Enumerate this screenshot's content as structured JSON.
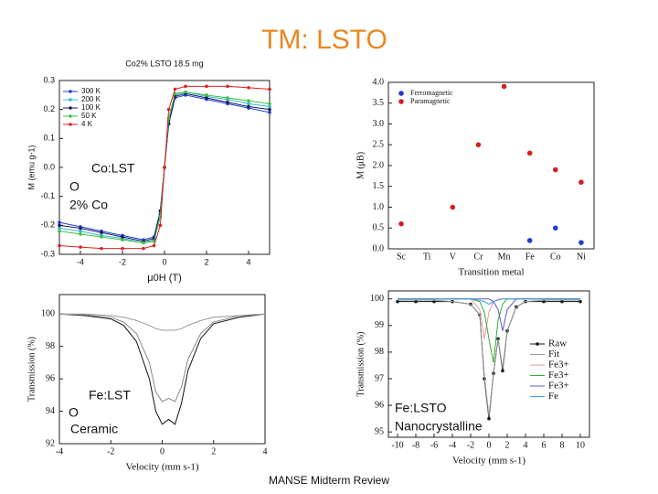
{
  "title": "TM: LSTO",
  "footer": "MANSE Midterm Review",
  "chart_data": [
    {
      "type": "line",
      "title": "Co2% LSTO 18.5 mg",
      "xlabel": "μ0H (T)",
      "ylabel": "M (emu g-1)",
      "x": [
        -5,
        -4,
        -3,
        -2,
        -1,
        -0.5,
        -0.2,
        0,
        0.2,
        0.5,
        1,
        2,
        3,
        4,
        5
      ],
      "xlim": [
        -5,
        5
      ],
      "xticks": [
        -4,
        -2,
        0,
        2,
        4
      ],
      "ylim": [
        -0.3,
        0.3
      ],
      "yticks": [
        -0.3,
        -0.2,
        -0.1,
        {
          "value": 0,
          "label": "0.0"
        },
        0.1,
        0.2,
        0.3
      ],
      "legend": "upper left",
      "series": [
        {
          "name": "300 K",
          "color": "#1f3fd0",
          "marker": true,
          "values": [
            -0.19,
            -0.205,
            -0.22,
            -0.235,
            -0.25,
            -0.24,
            -0.15,
            0,
            0.15,
            0.24,
            0.25,
            0.235,
            0.22,
            0.205,
            0.19
          ]
        },
        {
          "name": "200 K",
          "color": "#30b8d8",
          "marker": true,
          "values": [
            -0.21,
            -0.22,
            -0.235,
            -0.245,
            -0.26,
            -0.25,
            -0.16,
            0,
            0.16,
            0.25,
            0.26,
            0.245,
            0.235,
            0.22,
            0.21
          ]
        },
        {
          "name": "100 K",
          "color": "#1a1a60",
          "marker": true,
          "values": [
            -0.2,
            -0.21,
            -0.225,
            -0.24,
            -0.255,
            -0.245,
            -0.15,
            0,
            0.15,
            0.245,
            0.255,
            0.24,
            0.225,
            0.21,
            0.2
          ]
        },
        {
          "name": "50 K",
          "color": "#40c040",
          "marker": true,
          "values": [
            -0.22,
            -0.23,
            -0.24,
            -0.25,
            -0.26,
            -0.255,
            -0.17,
            0,
            0.17,
            0.255,
            0.26,
            0.25,
            0.24,
            0.23,
            0.22
          ]
        },
        {
          "name": "4 K",
          "color": "#e02020",
          "marker": true,
          "values": [
            -0.27,
            -0.275,
            -0.28,
            -0.28,
            -0.28,
            -0.27,
            -0.2,
            0,
            0.2,
            0.27,
            0.28,
            0.28,
            0.28,
            0.275,
            0.27
          ]
        }
      ],
      "annotations": [
        "Co:LST",
        "O",
        "2% Co"
      ]
    },
    {
      "type": "scatter",
      "xlabel": "Transition metal",
      "ylabel": "M (μB)",
      "categories": [
        "Sc",
        "Ti",
        "V",
        "Cr",
        "Mn",
        "Fe",
        "Co",
        "Ni"
      ],
      "ylim": [
        0,
        4
      ],
      "yticks": [
        {
          "value": 0,
          "label": "0.0"
        },
        0.5,
        {
          "value": 1,
          "label": "1.0"
        },
        1.5,
        {
          "value": 2,
          "label": "2.0"
        },
        2.5,
        {
          "value": 3,
          "label": "3.0"
        },
        3.5,
        {
          "value": 4,
          "label": "4.0"
        }
      ],
      "legend": "upper left",
      "series": [
        {
          "name": "Ferromagnetic",
          "color": "#1f3fd0",
          "values": [
            null,
            null,
            null,
            null,
            null,
            0.2,
            0.5,
            0.15
          ]
        },
        {
          "name": "Paramagnetic",
          "color": "#d02020",
          "values": [
            0.6,
            null,
            1.0,
            2.5,
            3.9,
            2.3,
            1.9,
            1.6
          ]
        }
      ]
    },
    {
      "type": "line",
      "xlabel": "Velocity (mm s-1)",
      "ylabel": "Transmission (%)",
      "x": [
        -4,
        -3,
        -2,
        -1.5,
        -1,
        -0.5,
        -0.25,
        0,
        0.25,
        0.5,
        0.75,
        1,
        1.5,
        2,
        3,
        4
      ],
      "xlim": [
        -4,
        4
      ],
      "xticks": [
        -4,
        -2,
        0,
        2,
        4
      ],
      "ylim": [
        92,
        101.2
      ],
      "yticks": [
        92,
        94,
        96,
        98,
        100
      ],
      "series": [
        {
          "color": "#111111",
          "values": [
            100,
            99.9,
            99.7,
            99.3,
            98.3,
            96,
            94,
            93.2,
            93.5,
            93.2,
            94.5,
            96.5,
            98.5,
            99.4,
            99.8,
            100
          ]
        },
        {
          "color": "#888888",
          "values": [
            100,
            99.95,
            99.8,
            99.5,
            98.8,
            97,
            95.2,
            94.6,
            94.8,
            94.6,
            95.5,
            97.2,
            98.8,
            99.5,
            99.9,
            100
          ]
        },
        {
          "color": "#999999",
          "values": [
            100,
            100,
            99.9,
            99.8,
            99.6,
            99.3,
            99.1,
            99.0,
            99.0,
            99.0,
            99.1,
            99.3,
            99.6,
            99.8,
            99.9,
            100
          ]
        }
      ],
      "annotations": [
        "Fe:LST",
        "O",
        "Ceramic"
      ]
    },
    {
      "type": "line",
      "xlabel": "Velocity (mm s-1)",
      "ylabel": "Transmission (%)",
      "x": [
        -10,
        -8,
        -6,
        -4,
        -2,
        -1,
        -0.5,
        0,
        0.5,
        1,
        1.5,
        2,
        3,
        4,
        6,
        8,
        10
      ],
      "xlim": [
        -11,
        11
      ],
      "xticks": [
        -10,
        -8,
        -6,
        -4,
        -2,
        0,
        2,
        4,
        6,
        8,
        10
      ],
      "ylim": [
        94.8,
        100.3
      ],
      "yticks": [
        95,
        96,
        97,
        98,
        99,
        100
      ],
      "legend": "right",
      "series": [
        {
          "name": "Raw",
          "color": "#111111",
          "marker": true,
          "values": [
            99.9,
            99.9,
            99.9,
            99.9,
            99.8,
            99.4,
            97.0,
            95.5,
            97.2,
            98.5,
            97.3,
            98.8,
            99.7,
            99.9,
            99.9,
            99.9,
            99.9
          ]
        },
        {
          "name": "Fit",
          "color": "#999999",
          "values": [
            99.95,
            99.95,
            99.95,
            99.9,
            99.8,
            99.4,
            97.1,
            95.6,
            97.2,
            98.5,
            97.4,
            98.8,
            99.7,
            99.9,
            99.95,
            99.95,
            99.95
          ]
        },
        {
          "name": "Fe3+",
          "color": "#e89aa0",
          "values": [
            100,
            100,
            100,
            100,
            100,
            99.6,
            98.5,
            99.5,
            99.9,
            100,
            100,
            100,
            100,
            100,
            100,
            100,
            100
          ]
        },
        {
          "name": "Fe3+",
          "color": "#30b030",
          "values": [
            100,
            100,
            100,
            100,
            100,
            99.9,
            99.5,
            98.5,
            97.6,
            99.2,
            99.8,
            100,
            100,
            100,
            100,
            100,
            100
          ]
        },
        {
          "name": "Fe3+",
          "color": "#5a5ad0",
          "values": [
            100,
            100,
            100,
            100,
            100,
            100,
            100,
            100,
            99.9,
            99.6,
            98.8,
            99.6,
            100,
            100,
            100,
            100,
            100
          ]
        },
        {
          "name": "Fe",
          "color": "#40a0e0",
          "values": [
            100,
            100,
            100,
            100,
            100,
            99.95,
            99.9,
            99.8,
            99.9,
            99.95,
            100,
            100,
            100,
            100,
            100,
            100,
            100
          ]
        }
      ],
      "annotations": [
        "Fe:LSTO",
        "Nanocrystalline"
      ]
    }
  ]
}
